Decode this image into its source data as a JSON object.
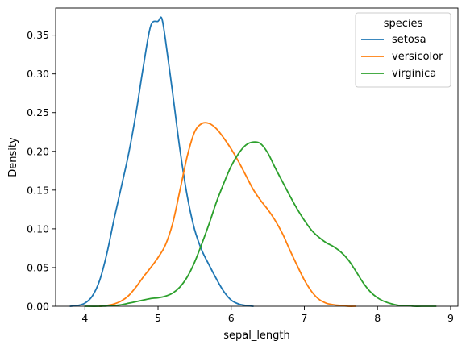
{
  "chart_data": {
    "type": "line",
    "xlabel": "sepal_length",
    "ylabel": "Density",
    "xlim": [
      3.6,
      9.1
    ],
    "ylim": [
      0.0,
      0.385
    ],
    "xticks": [
      "4",
      "5",
      "6",
      "7",
      "8",
      "9"
    ],
    "yticks": [
      "0.00",
      "0.05",
      "0.10",
      "0.15",
      "0.20",
      "0.25",
      "0.30",
      "0.35"
    ],
    "legend": {
      "title": "species",
      "placement": "top-right"
    },
    "series": [
      {
        "name": "setosa",
        "color": "#1f77b4",
        "x": [
          3.8,
          3.9,
          4.0,
          4.1,
          4.2,
          4.3,
          4.4,
          4.5,
          4.6,
          4.7,
          4.8,
          4.9,
          5.0,
          5.05,
          5.1,
          5.2,
          5.3,
          5.4,
          5.5,
          5.6,
          5.7,
          5.8,
          5.9,
          6.0,
          6.1,
          6.2,
          6.3
        ],
        "y": [
          0.0,
          0.001,
          0.004,
          0.013,
          0.033,
          0.068,
          0.113,
          0.155,
          0.198,
          0.25,
          0.31,
          0.362,
          0.368,
          0.372,
          0.345,
          0.275,
          0.202,
          0.142,
          0.099,
          0.072,
          0.053,
          0.035,
          0.019,
          0.008,
          0.003,
          0.001,
          0.0
        ]
      },
      {
        "name": "versicolor",
        "color": "#ff7f0e",
        "x": [
          4.2,
          4.3,
          4.4,
          4.5,
          4.6,
          4.7,
          4.8,
          4.9,
          5.0,
          5.1,
          5.2,
          5.3,
          5.4,
          5.5,
          5.6,
          5.7,
          5.8,
          5.9,
          6.0,
          6.1,
          6.2,
          6.3,
          6.4,
          6.5,
          6.6,
          6.7,
          6.8,
          6.9,
          7.0,
          7.1,
          7.2,
          7.3,
          7.4,
          7.5,
          7.6,
          7.7
        ],
        "y": [
          0.0,
          0.001,
          0.003,
          0.007,
          0.014,
          0.025,
          0.038,
          0.05,
          0.063,
          0.079,
          0.107,
          0.15,
          0.194,
          0.225,
          0.236,
          0.236,
          0.229,
          0.217,
          0.203,
          0.187,
          0.169,
          0.151,
          0.137,
          0.125,
          0.111,
          0.094,
          0.073,
          0.053,
          0.034,
          0.019,
          0.009,
          0.004,
          0.002,
          0.001,
          0.0,
          0.0
        ]
      },
      {
        "name": "virginica",
        "color": "#2ca02c",
        "x": [
          4.0,
          4.2,
          4.4,
          4.5,
          4.6,
          4.7,
          4.8,
          4.9,
          5.0,
          5.1,
          5.2,
          5.3,
          5.4,
          5.5,
          5.6,
          5.7,
          5.8,
          5.9,
          6.0,
          6.1,
          6.2,
          6.3,
          6.4,
          6.5,
          6.6,
          6.7,
          6.8,
          6.9,
          7.0,
          7.1,
          7.2,
          7.3,
          7.4,
          7.5,
          7.6,
          7.7,
          7.8,
          7.9,
          8.0,
          8.1,
          8.2,
          8.3,
          8.4,
          8.5,
          8.6,
          8.8
        ],
        "y": [
          0.0,
          0.0,
          0.001,
          0.002,
          0.004,
          0.006,
          0.008,
          0.01,
          0.011,
          0.013,
          0.017,
          0.025,
          0.038,
          0.057,
          0.081,
          0.107,
          0.135,
          0.159,
          0.181,
          0.197,
          0.208,
          0.212,
          0.21,
          0.198,
          0.179,
          0.161,
          0.143,
          0.126,
          0.111,
          0.098,
          0.089,
          0.082,
          0.077,
          0.07,
          0.06,
          0.046,
          0.031,
          0.019,
          0.011,
          0.006,
          0.003,
          0.001,
          0.001,
          0.0,
          0.0,
          0.0
        ]
      }
    ]
  }
}
